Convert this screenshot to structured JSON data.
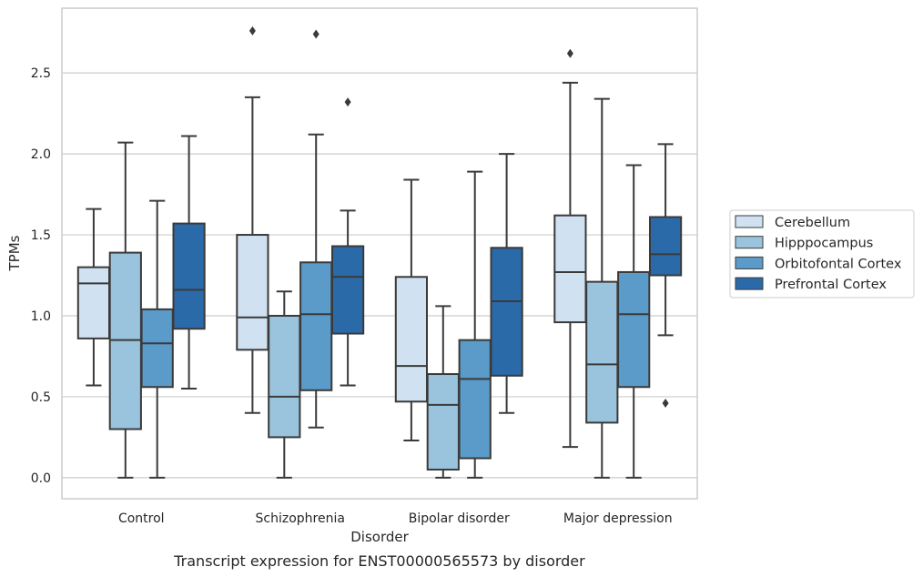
{
  "chart_data": {
    "type": "box",
    "caption": "Transcript expression for ENST00000565573 by disorder",
    "xlabel": "Disorder",
    "ylabel": "TPMs",
    "categories": [
      "Control",
      "Schizophrenia",
      "Bipolar disorder",
      "Major depression"
    ],
    "ylim": [
      -0.13,
      2.9
    ],
    "yticks": [
      0.0,
      0.5,
      1.0,
      1.5,
      2.0,
      2.5
    ],
    "ytick_labels": [
      "0.0",
      "0.5",
      "1.0",
      "1.5",
      "2.0",
      "2.5"
    ],
    "grid": true,
    "legend_position": "right",
    "series": [
      {
        "name": "Cerebellum",
        "color": "#d0e1f2",
        "boxes": [
          {
            "whislo": 0.57,
            "q1": 0.86,
            "med": 1.2,
            "q3": 1.3,
            "whishi": 1.66,
            "fliers": []
          },
          {
            "whislo": 0.4,
            "q1": 0.79,
            "med": 0.99,
            "q3": 1.5,
            "whishi": 2.35,
            "fliers": [
              2.76
            ]
          },
          {
            "whislo": 0.23,
            "q1": 0.47,
            "med": 0.69,
            "q3": 1.24,
            "whishi": 1.84,
            "fliers": []
          },
          {
            "whislo": 0.19,
            "q1": 0.96,
            "med": 1.27,
            "q3": 1.62,
            "whishi": 2.44,
            "fliers": [
              2.62
            ]
          }
        ]
      },
      {
        "name": "Hipppocampus",
        "color": "#9ac3dd",
        "boxes": [
          {
            "whislo": 0.0,
            "q1": 0.3,
            "med": 0.85,
            "q3": 1.39,
            "whishi": 2.07,
            "fliers": []
          },
          {
            "whislo": 0.0,
            "q1": 0.25,
            "med": 0.5,
            "q3": 1.0,
            "whishi": 1.15,
            "fliers": []
          },
          {
            "whislo": 0.0,
            "q1": 0.05,
            "med": 0.45,
            "q3": 0.64,
            "whishi": 1.06,
            "fliers": []
          },
          {
            "whislo": 0.0,
            "q1": 0.34,
            "med": 0.7,
            "q3": 1.21,
            "whishi": 2.34,
            "fliers": []
          }
        ]
      },
      {
        "name": "Orbitofontal Cortex",
        "color": "#5a9bc9",
        "boxes": [
          {
            "whislo": 0.0,
            "q1": 0.56,
            "med": 0.83,
            "q3": 1.04,
            "whishi": 1.71,
            "fliers": []
          },
          {
            "whislo": 0.31,
            "q1": 0.54,
            "med": 1.01,
            "q3": 1.33,
            "whishi": 2.12,
            "fliers": [
              2.74
            ]
          },
          {
            "whislo": 0.0,
            "q1": 0.12,
            "med": 0.61,
            "q3": 0.85,
            "whishi": 1.89,
            "fliers": []
          },
          {
            "whislo": 0.0,
            "q1": 0.56,
            "med": 1.01,
            "q3": 1.27,
            "whishi": 1.93,
            "fliers": []
          }
        ]
      },
      {
        "name": "Prefrontal Cortex",
        "color": "#2b6aa9",
        "boxes": [
          {
            "whislo": 0.55,
            "q1": 0.92,
            "med": 1.16,
            "q3": 1.57,
            "whishi": 2.11,
            "fliers": []
          },
          {
            "whislo": 0.57,
            "q1": 0.89,
            "med": 1.24,
            "q3": 1.43,
            "whishi": 1.65,
            "fliers": [
              2.32
            ]
          },
          {
            "whislo": 0.4,
            "q1": 0.63,
            "med": 1.09,
            "q3": 1.42,
            "whishi": 2.0,
            "fliers": []
          },
          {
            "whislo": 0.88,
            "q1": 1.25,
            "med": 1.38,
            "q3": 1.61,
            "whishi": 2.06,
            "fliers": [
              0.46
            ]
          }
        ]
      }
    ]
  }
}
